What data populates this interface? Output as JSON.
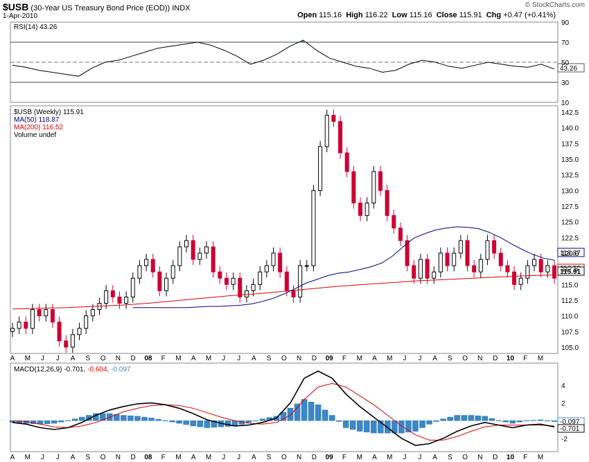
{
  "header": {
    "symbol": "$USB",
    "description": "(30-Year US Treasury Bond Price (EOD))",
    "exchange": "INDX",
    "date": "1-Apr-2010",
    "open_label": "Open",
    "open": "115.16",
    "high_label": "High",
    "high": "116.22",
    "low_label": "Low",
    "low": "115.16",
    "close_label": "Close",
    "close": "115.91",
    "chg_label": "Chg",
    "chg": "+0.47 (+0.41%)",
    "brand": "© StockCharts.com"
  },
  "colors": {
    "up": "#000000",
    "down": "#cc0033",
    "ma50": "#000080",
    "ma200": "#dd0000",
    "macd": "#000000",
    "signal": "#dd0000",
    "hist": "#3a88c8",
    "rsi_fill": "#2e7d32"
  },
  "rsi_panel": {
    "legend": "RSI(14) 43.26",
    "last_value": "43.26",
    "y_ticks": [
      "90",
      "70",
      "50",
      "30",
      "10"
    ]
  },
  "price_panel": {
    "legend": [
      {
        "text": "$USB (Weekly) 115.91",
        "color": "#000000"
      },
      {
        "text": "MA(50) 118.87",
        "color": "#000080"
      },
      {
        "text": "MA(200) 116.52",
        "color": "#dd0000"
      },
      {
        "text": "Volume undef",
        "color": "#000000"
      }
    ],
    "y_ticks": [
      "142.5",
      "140.0",
      "137.5",
      "135.0",
      "132.5",
      "130.0",
      "127.5",
      "125.0",
      "122.5",
      "120.0",
      "117.5",
      "115.0",
      "112.5",
      "110.0",
      "107.5",
      "105.0"
    ],
    "last_ma50": "118.87",
    "last_ma200": "116.52",
    "last_close": "115.91"
  },
  "macd_panel": {
    "legend_label": "MACD(12,26,9)",
    "legend_macd": "-0.701,",
    "legend_signal": "-0.604,",
    "legend_hist": "-0.097",
    "y_ticks": [
      "4",
      "2",
      "-2"
    ],
    "last_hist": "-0.097",
    "last_macd": "-0.701"
  },
  "x_axis": {
    "labels": [
      "A",
      "M",
      "J",
      "J",
      "A",
      "S",
      "O",
      "N",
      "D",
      "08",
      "F",
      "M",
      "A",
      "M",
      "J",
      "J",
      "A",
      "S",
      "O",
      "N",
      "D",
      "09",
      "F",
      "M",
      "A",
      "M",
      "J",
      "J",
      "A",
      "S",
      "O",
      "N",
      "D",
      "10",
      "F",
      "M"
    ]
  },
  "chart_data": {
    "type": "candlestick",
    "frequency": "weekly",
    "start_month": "2007-04",
    "price": [
      108,
      109,
      108,
      111,
      110,
      111,
      109,
      106,
      105,
      107,
      108,
      110,
      111,
      112,
      114,
      113,
      112,
      113,
      116,
      118,
      119,
      117,
      114,
      116,
      118,
      121,
      122,
      119,
      120,
      121,
      117,
      116,
      115,
      116,
      113,
      114,
      115,
      117,
      118,
      120,
      117,
      114,
      113,
      118,
      118,
      130,
      137,
      142,
      141,
      136,
      133,
      128,
      126,
      128,
      133,
      130,
      126,
      124,
      122,
      118,
      116,
      119,
      116,
      117,
      120,
      118,
      120,
      122,
      118,
      117,
      119,
      122,
      120,
      118,
      117,
      115,
      116,
      118,
      119,
      117,
      118,
      116
    ],
    "ma50": [
      111.3,
      111.3,
      111.3,
      111.3,
      111.3,
      111.3,
      111.4,
      111.5,
      111.5,
      111.6,
      111.7,
      111.9,
      112.3,
      112.8,
      113.5,
      114.3,
      115.2,
      115.8,
      116.4,
      116.8,
      117,
      117.4,
      117.8,
      118.4,
      119.5,
      121,
      122.4,
      123.1,
      123.7,
      124,
      124.2,
      124.1,
      123.9,
      123.3,
      122.5,
      121.5,
      120.6,
      119.8,
      119.2,
      118.87
    ],
    "ma200": [
      111.1,
      111.2,
      111.3,
      111.5,
      111.7,
      112,
      112.4,
      112.8,
      113.2,
      113.5,
      113.9,
      114.3,
      114.7,
      115,
      115.3,
      115.6,
      115.8,
      116,
      116.2,
      116.4,
      116.52
    ],
    "rsi": [
      47,
      45,
      42,
      40,
      38,
      36,
      44,
      50,
      52,
      56,
      60,
      64,
      66,
      68,
      70,
      67,
      62,
      56,
      48,
      52,
      58,
      66,
      72,
      62,
      54,
      50,
      46,
      44,
      40,
      42,
      48,
      52,
      50,
      46,
      44,
      47,
      50,
      48,
      46,
      45,
      48,
      43.26
    ],
    "macd": [
      -0.2,
      -0.4,
      -0.8,
      -1,
      -0.8,
      -0.2,
      0.6,
      1.2,
      1.6,
      1.9,
      2,
      1.8,
      1.4,
      0.8,
      0.1,
      -0.3,
      -0.6,
      -0.5,
      -0.2,
      0.3,
      2,
      4.8,
      5.6,
      4.8,
      3,
      1.6,
      0.4,
      -0.8,
      -2,
      -2.8,
      -2.6,
      -2,
      -1.2,
      -0.6,
      -0.2,
      -0.5,
      -0.8,
      -0.5,
      -0.4,
      -0.701
    ],
    "signal": [
      0,
      -0.1,
      -0.4,
      -0.7,
      -0.8,
      -0.6,
      -0.2,
      0.4,
      1,
      1.4,
      1.7,
      1.8,
      1.7,
      1.4,
      0.9,
      0.4,
      0,
      -0.3,
      -0.4,
      -0.2,
      0.6,
      2.4,
      3.8,
      4.2,
      3.8,
      2.8,
      1.8,
      0.6,
      -0.6,
      -1.6,
      -2.2,
      -2.2,
      -1.8,
      -1.2,
      -0.7,
      -0.5,
      -0.5,
      -0.5,
      -0.5,
      -0.604
    ],
    "rsi_range": [
      10,
      90
    ],
    "price_range": [
      104,
      143.5
    ],
    "macd_range": [
      -3.5,
      6.5
    ]
  }
}
